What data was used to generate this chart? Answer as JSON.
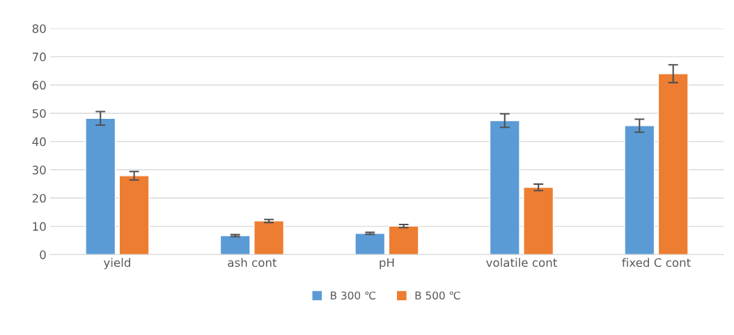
{
  "chart_data": {
    "type": "bar",
    "categories": [
      "yield",
      "ash cont",
      "pH",
      "volatile cont",
      "fixed C cont"
    ],
    "series": [
      {
        "name": "B 300 ℃",
        "color": "#5b9bd5",
        "values": [
          48.2,
          6.7,
          7.5,
          47.4,
          45.6
        ],
        "errors": [
          2.4,
          0.35,
          0.35,
          2.4,
          2.3
        ]
      },
      {
        "name": "B 500 ℃",
        "color": "#ed7d31",
        "values": [
          27.9,
          11.9,
          10.1,
          23.8,
          64.0
        ],
        "errors": [
          1.5,
          0.55,
          0.55,
          1.15,
          3.15
        ]
      }
    ],
    "ylim": [
      0,
      80
    ],
    "yticks": [
      0,
      10,
      20,
      30,
      40,
      50,
      60,
      70,
      80
    ],
    "grid": "y",
    "legend": "bottom"
  }
}
